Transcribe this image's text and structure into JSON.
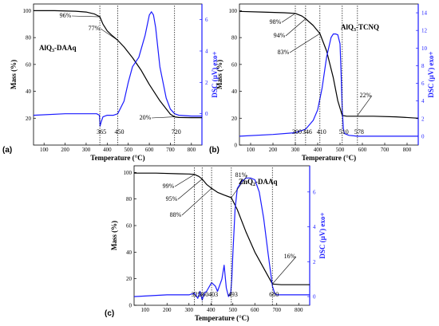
{
  "chart_data": [
    {
      "type": "line",
      "panel_label": "(a)",
      "title": "AlQ3-DAAq",
      "xlabel": "Temperature (°C)",
      "ylabel": "Mass (%)",
      "y2label": "DSC (µV) exo+",
      "xlim": [
        50,
        850
      ],
      "ylim": [
        0,
        105
      ],
      "y2lim": [
        -2,
        7
      ],
      "xticks": [
        "100",
        "200",
        "300",
        "400",
        "500",
        "600",
        "700",
        "800"
      ],
      "yticks": [
        "20",
        "40",
        "60",
        "80",
        "100"
      ],
      "y2ticks": [
        "0",
        "2",
        "4",
        "6"
      ],
      "series": [
        {
          "axis": "left",
          "color": "#000000",
          "x": [
            50,
            150,
            250,
            300,
            340,
            365,
            380,
            400,
            420,
            450,
            480,
            520,
            560,
            600,
            650,
            700,
            720,
            740,
            800,
            850
          ],
          "y": [
            100,
            100,
            99.6,
            99,
            97.5,
            95.5,
            90,
            85,
            82,
            78,
            73,
            65,
            56,
            45,
            33,
            23,
            21,
            20.5,
            20.4,
            20.4
          ]
        },
        {
          "axis": "right",
          "color": "#1a1aff",
          "x": [
            50,
            200,
            300,
            350,
            363,
            366,
            372,
            380,
            400,
            430,
            450,
            480,
            500,
            520,
            550,
            580,
            600,
            610,
            620,
            630,
            650,
            680,
            700,
            720,
            740,
            800,
            850
          ],
          "y": [
            -0.1,
            0,
            0,
            0,
            -0.1,
            -0.8,
            -0.5,
            -0.2,
            -0.1,
            -0.1,
            0,
            0.8,
            2,
            3,
            3.6,
            5,
            6.3,
            6.5,
            6.3,
            5.5,
            3,
            1,
            0.3,
            0,
            -0.1,
            -0.15,
            -0.15
          ]
        }
      ],
      "annotations": [
        {
          "text": "96%",
          "x": 365,
          "y": 95.5
        },
        {
          "text": "77%",
          "x": 450,
          "y": 78
        },
        {
          "text": "20%",
          "x": 720,
          "y": 21
        },
        {
          "text": "365",
          "x": 365,
          "y": 0
        },
        {
          "text": "450",
          "x": 450,
          "y": 0
        },
        {
          "text": "720",
          "x": 720,
          "y": 0
        }
      ]
    },
    {
      "type": "line",
      "panel_label": "(b)",
      "title": "AlQ3-TCNQ",
      "xlabel": "Temperature (°C)",
      "ylabel": "Mass (%)",
      "y2label": "DSC (µV) exo+",
      "xlim": [
        50,
        850
      ],
      "ylim": [
        0,
        105
      ],
      "y2lim": [
        -1,
        15
      ],
      "xticks": [
        "100",
        "200",
        "300",
        "400",
        "500",
        "600",
        "700",
        "800"
      ],
      "yticks": [
        "0",
        "20",
        "40",
        "60",
        "80",
        "100"
      ],
      "y2ticks": [
        "0",
        "2",
        "4",
        "6",
        "8",
        "10",
        "12",
        "14"
      ],
      "series": [
        {
          "axis": "left",
          "color": "#000000",
          "x": [
            50,
            150,
            250,
            300,
            330,
            346,
            380,
            410,
            440,
            470,
            490,
            510,
            530,
            560,
            578,
            650,
            750,
            850
          ],
          "y": [
            99.5,
            99,
            98.5,
            98,
            96,
            94,
            89,
            83,
            70,
            50,
            33,
            22,
            21.5,
            21.5,
            21.5,
            21.5,
            21,
            20
          ]
        },
        {
          "axis": "right",
          "color": "#1a1aff",
          "x": [
            50,
            200,
            300,
            346,
            380,
            400,
            420,
            440,
            460,
            470,
            480,
            490,
            500,
            505,
            510,
            515,
            520,
            540,
            578,
            650,
            750,
            850
          ],
          "y": [
            0,
            0.2,
            0.4,
            0.8,
            1.8,
            3,
            5.5,
            9,
            11.2,
            11.6,
            11.6,
            11.5,
            10.5,
            7,
            3,
            0.8,
            0.3,
            0.1,
            0,
            0,
            0,
            0
          ]
        }
      ],
      "annotations": [
        {
          "text": "98%",
          "x": 300,
          "y": 98
        },
        {
          "text": "94%",
          "x": 346,
          "y": 94
        },
        {
          "text": "83%",
          "x": 410,
          "y": 83
        },
        {
          "text": "22%",
          "x": 578,
          "y": 22
        },
        {
          "text": "300",
          "x": 300,
          "y": 0
        },
        {
          "text": "346",
          "x": 346,
          "y": 0
        },
        {
          "text": "410",
          "x": 410,
          "y": 0
        },
        {
          "text": "510",
          "x": 510,
          "y": 0
        },
        {
          "text": "578",
          "x": 578,
          "y": 0
        }
      ]
    },
    {
      "type": "line",
      "panel_label": "(c)",
      "title": "ZnQ2-DAAq",
      "xlabel": "Temperature (°C)",
      "ylabel": "Mass (%)",
      "y2label": "DSC (µV) exo+",
      "xlim": [
        50,
        850
      ],
      "ylim": [
        0,
        105
      ],
      "y2lim": [
        -0.5,
        7.5
      ],
      "xticks": [
        "100",
        "200",
        "300",
        "400",
        "500",
        "600",
        "700",
        "800"
      ],
      "yticks": [
        "0",
        "20",
        "40",
        "60",
        "80",
        "100"
      ],
      "y2ticks": [
        "0",
        "2",
        "4",
        "6"
      ],
      "series": [
        {
          "axis": "left",
          "color": "#000000",
          "x": [
            50,
            150,
            250,
            300,
            325,
            345,
            360,
            380,
            403,
            430,
            460,
            493,
            520,
            560,
            600,
            640,
            680,
            720,
            800,
            850
          ],
          "y": [
            99.5,
            99.5,
            99,
            98.8,
            98.5,
            97,
            95,
            91,
            88,
            85,
            83,
            81,
            72,
            55,
            40,
            28,
            16,
            15.5,
            15.5,
            15.5
          ]
        },
        {
          "axis": "right",
          "color": "#1a1aff",
          "x": [
            50,
            200,
            300,
            325,
            340,
            350,
            360,
            370,
            380,
            403,
            420,
            430,
            450,
            460,
            470,
            480,
            490,
            495,
            500,
            510,
            520,
            540,
            560,
            580,
            600,
            620,
            640,
            660,
            680,
            690,
            700,
            750,
            800,
            850
          ],
          "y": [
            0,
            0.1,
            0.1,
            0.2,
            -0.1,
            0.3,
            -0.2,
            0.2,
            0.3,
            0.8,
            0.6,
            0.3,
            1,
            1.8,
            0.5,
            0,
            0.2,
            1,
            2.5,
            5,
            6.2,
            6.6,
            6.8,
            6.8,
            6.7,
            6,
            4.5,
            2.5,
            0.6,
            0.2,
            0.1,
            0.1,
            0.1,
            0.1
          ]
        }
      ],
      "annotations": [
        {
          "text": "99%",
          "x": 325,
          "y": 98.5
        },
        {
          "text": "95%",
          "x": 360,
          "y": 95
        },
        {
          "text": "88%",
          "x": 403,
          "y": 88
        },
        {
          "text": "81%",
          "x": 493,
          "y": 81
        },
        {
          "text": "16%",
          "x": 680,
          "y": 16
        },
        {
          "text": "325",
          "x": 325,
          "y": 0
        },
        {
          "text": "360",
          "x": 360,
          "y": 0
        },
        {
          "text": "403",
          "x": 403,
          "y": 0
        },
        {
          "text": "493",
          "x": 493,
          "y": 0
        },
        {
          "text": "680",
          "x": 680,
          "y": 0
        }
      ]
    }
  ]
}
